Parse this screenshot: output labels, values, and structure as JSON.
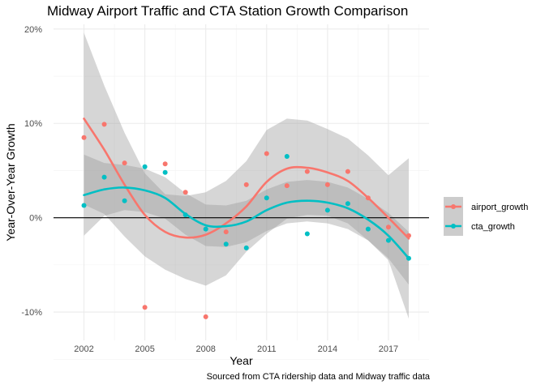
{
  "chart_data": {
    "type": "scatter",
    "title": "Midway Airport Traffic and CTA Station Growth Comparison",
    "xlabel": "Year",
    "ylabel": "Year-Over-Year Growth",
    "caption": "Sourced from CTA ridership data and Midway traffic data",
    "xlim": [
      2000.5,
      2019.0
    ],
    "ylim": [
      -0.13,
      0.205
    ],
    "x_ticks": [
      2002,
      2005,
      2008,
      2011,
      2014,
      2017
    ],
    "x_tick_labels": [
      "2002",
      "2005",
      "2008",
      "2011",
      "2014",
      "2017"
    ],
    "y_ticks": [
      -0.1,
      0.0,
      0.1,
      0.2
    ],
    "y_tick_labels": [
      "-10%",
      "0%",
      "10%",
      "20%"
    ],
    "reference_line_y": 0,
    "grid": true,
    "legend_position": "right",
    "series": [
      {
        "name": "airport_growth",
        "color": "#F8766D",
        "points": [
          {
            "x": 2002,
            "y": 0.085
          },
          {
            "x": 2003,
            "y": 0.099
          },
          {
            "x": 2004,
            "y": 0.058
          },
          {
            "x": 2005,
            "y": -0.095
          },
          {
            "x": 2006,
            "y": 0.057
          },
          {
            "x": 2007,
            "y": 0.027
          },
          {
            "x": 2008,
            "y": -0.105
          },
          {
            "x": 2009,
            "y": -0.015
          },
          {
            "x": 2010,
            "y": 0.035
          },
          {
            "x": 2011,
            "y": 0.068
          },
          {
            "x": 2012,
            "y": 0.034
          },
          {
            "x": 2013,
            "y": 0.049
          },
          {
            "x": 2014,
            "y": 0.035
          },
          {
            "x": 2015,
            "y": 0.049
          },
          {
            "x": 2016,
            "y": 0.021
          },
          {
            "x": 2017,
            "y": -0.01
          },
          {
            "x": 2018,
            "y": -0.019
          }
        ],
        "smooth": [
          {
            "x": 2002,
            "y": 0.105
          },
          {
            "x": 2003,
            "y": 0.072
          },
          {
            "x": 2004,
            "y": 0.035
          },
          {
            "x": 2005,
            "y": 0.003
          },
          {
            "x": 2006,
            "y": -0.015
          },
          {
            "x": 2007,
            "y": -0.021
          },
          {
            "x": 2008,
            "y": -0.018
          },
          {
            "x": 2009,
            "y": -0.006
          },
          {
            "x": 2010,
            "y": 0.012
          },
          {
            "x": 2011,
            "y": 0.038
          },
          {
            "x": 2012,
            "y": 0.052
          },
          {
            "x": 2013,
            "y": 0.053
          },
          {
            "x": 2014,
            "y": 0.048
          },
          {
            "x": 2015,
            "y": 0.039
          },
          {
            "x": 2016,
            "y": 0.021
          },
          {
            "x": 2017,
            "y": 0.0
          },
          {
            "x": 2018,
            "y": -0.022
          }
        ],
        "band_upper": [
          {
            "x": 2002,
            "y": 0.196
          },
          {
            "x": 2003,
            "y": 0.14
          },
          {
            "x": 2004,
            "y": 0.09
          },
          {
            "x": 2005,
            "y": 0.047
          },
          {
            "x": 2006,
            "y": 0.025
          },
          {
            "x": 2007,
            "y": 0.023
          },
          {
            "x": 2008,
            "y": 0.027
          },
          {
            "x": 2009,
            "y": 0.039
          },
          {
            "x": 2010,
            "y": 0.06
          },
          {
            "x": 2011,
            "y": 0.093
          },
          {
            "x": 2012,
            "y": 0.105
          },
          {
            "x": 2013,
            "y": 0.103
          },
          {
            "x": 2014,
            "y": 0.094
          },
          {
            "x": 2015,
            "y": 0.084
          },
          {
            "x": 2016,
            "y": 0.066
          },
          {
            "x": 2017,
            "y": 0.045
          },
          {
            "x": 2018,
            "y": 0.063
          }
        ],
        "band_lower": [
          {
            "x": 2002,
            "y": 0.014
          },
          {
            "x": 2003,
            "y": 0.004
          },
          {
            "x": 2004,
            "y": -0.02
          },
          {
            "x": 2005,
            "y": -0.041
          },
          {
            "x": 2006,
            "y": -0.055
          },
          {
            "x": 2007,
            "y": -0.065
          },
          {
            "x": 2008,
            "y": -0.072
          },
          {
            "x": 2009,
            "y": -0.061
          },
          {
            "x": 2010,
            "y": -0.036
          },
          {
            "x": 2011,
            "y": -0.017
          },
          {
            "x": 2012,
            "y": -0.001
          },
          {
            "x": 2013,
            "y": 0.003
          },
          {
            "x": 2014,
            "y": 0.002
          },
          {
            "x": 2015,
            "y": -0.006
          },
          {
            "x": 2016,
            "y": -0.024
          },
          {
            "x": 2017,
            "y": -0.045
          },
          {
            "x": 2018,
            "y": -0.107
          }
        ]
      },
      {
        "name": "cta_growth",
        "color": "#00BFC4",
        "points": [
          {
            "x": 2002,
            "y": 0.013
          },
          {
            "x": 2003,
            "y": 0.043
          },
          {
            "x": 2004,
            "y": 0.018
          },
          {
            "x": 2005,
            "y": 0.054
          },
          {
            "x": 2006,
            "y": 0.048
          },
          {
            "x": 2007,
            "y": 0.003
          },
          {
            "x": 2008,
            "y": -0.012
          },
          {
            "x": 2009,
            "y": -0.028
          },
          {
            "x": 2010,
            "y": -0.032
          },
          {
            "x": 2011,
            "y": 0.021
          },
          {
            "x": 2012,
            "y": 0.065
          },
          {
            "x": 2013,
            "y": -0.017
          },
          {
            "x": 2014,
            "y": 0.008
          },
          {
            "x": 2015,
            "y": 0.015
          },
          {
            "x": 2016,
            "y": -0.012
          },
          {
            "x": 2017,
            "y": -0.024
          },
          {
            "x": 2018,
            "y": -0.043
          }
        ],
        "smooth": [
          {
            "x": 2002,
            "y": 0.024
          },
          {
            "x": 2003,
            "y": 0.03
          },
          {
            "x": 2004,
            "y": 0.032
          },
          {
            "x": 2005,
            "y": 0.029
          },
          {
            "x": 2006,
            "y": 0.021
          },
          {
            "x": 2007,
            "y": 0.004
          },
          {
            "x": 2008,
            "y": -0.008
          },
          {
            "x": 2009,
            "y": -0.009
          },
          {
            "x": 2010,
            "y": -0.004
          },
          {
            "x": 2011,
            "y": 0.008
          },
          {
            "x": 2012,
            "y": 0.016
          },
          {
            "x": 2013,
            "y": 0.018
          },
          {
            "x": 2014,
            "y": 0.016
          },
          {
            "x": 2015,
            "y": 0.01
          },
          {
            "x": 2016,
            "y": -0.002
          },
          {
            "x": 2017,
            "y": -0.019
          },
          {
            "x": 2018,
            "y": -0.043
          }
        ],
        "band_upper": [
          {
            "x": 2002,
            "y": 0.067
          },
          {
            "x": 2003,
            "y": 0.058
          },
          {
            "x": 2004,
            "y": 0.056
          },
          {
            "x": 2005,
            "y": 0.052
          },
          {
            "x": 2006,
            "y": 0.043
          },
          {
            "x": 2007,
            "y": 0.026
          },
          {
            "x": 2008,
            "y": 0.014
          },
          {
            "x": 2009,
            "y": 0.013
          },
          {
            "x": 2010,
            "y": 0.018
          },
          {
            "x": 2011,
            "y": 0.03
          },
          {
            "x": 2012,
            "y": 0.038
          },
          {
            "x": 2013,
            "y": 0.04
          },
          {
            "x": 2014,
            "y": 0.038
          },
          {
            "x": 2015,
            "y": 0.032
          },
          {
            "x": 2016,
            "y": 0.02
          },
          {
            "x": 2017,
            "y": 0.005
          },
          {
            "x": 2018,
            "y": -0.015
          }
        ],
        "band_lower": [
          {
            "x": 2002,
            "y": -0.019
          },
          {
            "x": 2003,
            "y": 0.002
          },
          {
            "x": 2004,
            "y": 0.008
          },
          {
            "x": 2005,
            "y": 0.006
          },
          {
            "x": 2006,
            "y": -0.001
          },
          {
            "x": 2007,
            "y": -0.018
          },
          {
            "x": 2008,
            "y": -0.03
          },
          {
            "x": 2009,
            "y": -0.031
          },
          {
            "x": 2010,
            "y": -0.026
          },
          {
            "x": 2011,
            "y": -0.014
          },
          {
            "x": 2012,
            "y": -0.006
          },
          {
            "x": 2013,
            "y": -0.004
          },
          {
            "x": 2014,
            "y": -0.006
          },
          {
            "x": 2015,
            "y": -0.012
          },
          {
            "x": 2016,
            "y": -0.024
          },
          {
            "x": 2017,
            "y": -0.043
          },
          {
            "x": 2018,
            "y": -0.071
          }
        ]
      }
    ]
  }
}
